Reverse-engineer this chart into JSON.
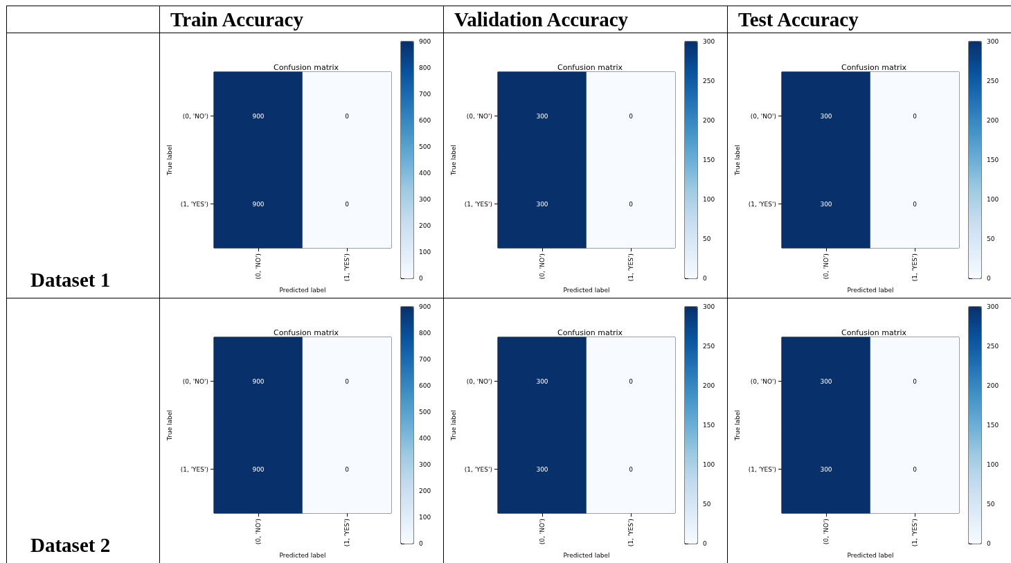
{
  "chart_data": [
    {
      "type": "other",
      "annotations": [
        "Train Accuracy",
        "Validation Accuracy",
        "Test Accuracy",
        "Dataset 1",
        "Dataset 2"
      ]
    },
    {
      "type": "heatmap",
      "title": "Confusion matrix",
      "xlabel": "Predicted label",
      "ylabel": "True label",
      "categories": [
        "(0, 'NO')",
        "(1, 'YES')"
      ],
      "y_categories": [
        "(0, 'NO')",
        "(1, 'YES')"
      ],
      "cells": [
        [
          900,
          0
        ],
        [
          900,
          0
        ]
      ],
      "clim": [
        0,
        900
      ],
      "cticks": [
        0,
        100,
        200,
        300,
        400,
        500,
        600,
        700,
        800,
        900
      ],
      "data_labels": true
    },
    {
      "type": "heatmap",
      "title": "Confusion matrix",
      "xlabel": "Predicted label",
      "ylabel": "True label",
      "categories": [
        "(0, 'NO')",
        "(1, 'YES')"
      ],
      "y_categories": [
        "(0, 'NO')",
        "(1, 'YES')"
      ],
      "cells": [
        [
          300,
          0
        ],
        [
          300,
          0
        ]
      ],
      "clim": [
        0,
        300
      ],
      "cticks": [
        0,
        50,
        100,
        150,
        200,
        250,
        300
      ],
      "data_labels": true
    },
    {
      "type": "heatmap",
      "title": "Confusion matrix",
      "xlabel": "Predicted label",
      "ylabel": "True label",
      "categories": [
        "(0, 'NO')",
        "(1, 'YES')"
      ],
      "y_categories": [
        "(0, 'NO')",
        "(1, 'YES')"
      ],
      "cells": [
        [
          300,
          0
        ],
        [
          300,
          0
        ]
      ],
      "clim": [
        0,
        300
      ],
      "cticks": [
        0,
        50,
        100,
        150,
        200,
        250,
        300
      ],
      "data_labels": true
    },
    {
      "type": "heatmap",
      "title": "Confusion matrix",
      "xlabel": "Predicted label",
      "ylabel": "True label",
      "categories": [
        "(0, 'NO')",
        "(1, 'YES')"
      ],
      "y_categories": [
        "(0, 'NO')",
        "(1, 'YES')"
      ],
      "cells": [
        [
          900,
          0
        ],
        [
          900,
          0
        ]
      ],
      "clim": [
        0,
        900
      ],
      "cticks": [
        0,
        100,
        200,
        300,
        400,
        500,
        600,
        700,
        800,
        900
      ],
      "data_labels": true
    },
    {
      "type": "heatmap",
      "title": "Confusion matrix",
      "xlabel": "Predicted label",
      "ylabel": "True label",
      "categories": [
        "(0, 'NO')",
        "(1, 'YES')"
      ],
      "y_categories": [
        "(0, 'NO')",
        "(1, 'YES')"
      ],
      "cells": [
        [
          300,
          0
        ],
        [
          300,
          0
        ]
      ],
      "clim": [
        0,
        300
      ],
      "cticks": [
        0,
        50,
        100,
        150,
        200,
        250,
        300
      ],
      "data_labels": true
    },
    {
      "type": "heatmap",
      "title": "Confusion matrix",
      "xlabel": "Predicted label",
      "ylabel": "True label",
      "categories": [
        "(0, 'NO')",
        "(1, 'YES')"
      ],
      "y_categories": [
        "(0, 'NO')",
        "(1, 'YES')"
      ],
      "cells": [
        [
          300,
          0
        ],
        [
          300,
          0
        ]
      ],
      "clim": [
        0,
        300
      ],
      "cticks": [
        0,
        50,
        100,
        150,
        200,
        250,
        300
      ],
      "data_labels": true
    }
  ]
}
